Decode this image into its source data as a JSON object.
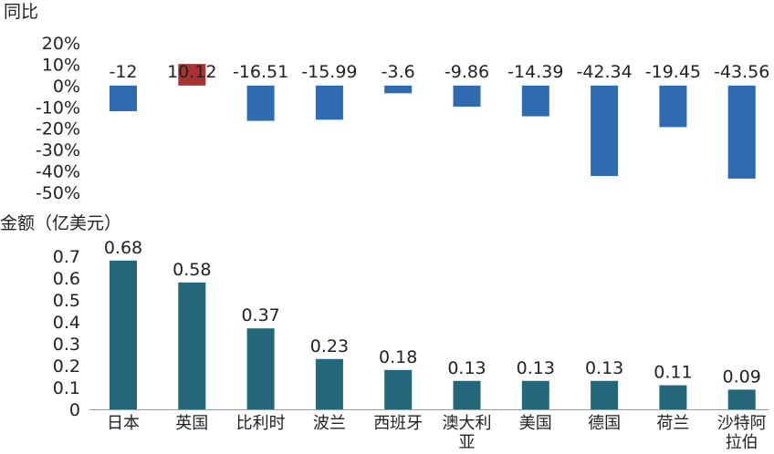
{
  "colors": {
    "positive": "#A83232",
    "negative": "#2E6BB0",
    "amount": "#25677A",
    "axis": "#999999"
  },
  "chart_data": [
    {
      "type": "bar",
      "ylabel": "同比",
      "ylim": [
        -50,
        20
      ],
      "yticks": [
        20,
        10,
        0,
        -10,
        -20,
        -30,
        -40,
        -50
      ],
      "ytick_labels": [
        "20%",
        "10%",
        "0%",
        "-10%",
        "-20%",
        "-30%",
        "-40%",
        "-50%"
      ],
      "categories": [
        "日本",
        "英国",
        "比利时",
        "波兰",
        "西班牙",
        "澳大利亚",
        "美国",
        "德国",
        "荷兰",
        "沙特阿拉伯"
      ],
      "values": [
        -12,
        10.12,
        -16.51,
        -15.99,
        -3.6,
        -9.86,
        -14.39,
        -42.34,
        -19.45,
        -43.56
      ],
      "data_labels": [
        "-12",
        "10.12",
        "-16.51",
        "-15.99",
        "-3.6",
        "-9.86",
        "-14.39",
        "-42.34",
        "-19.45",
        "-43.56"
      ],
      "grid": false
    },
    {
      "type": "bar",
      "ylabel": "金额（亿美元）",
      "ylim": [
        0,
        0.7
      ],
      "yticks": [
        0.7,
        0.6,
        0.5,
        0.4,
        0.3,
        0.2,
        0.1,
        0
      ],
      "ytick_labels": [
        "0.7",
        "0.6",
        "0.5",
        "0.4",
        "0.3",
        "0.2",
        "0.1",
        "0"
      ],
      "categories": [
        "日本",
        "英国",
        "比利时",
        "波兰",
        "西班牙",
        "澳大利亚",
        "美国",
        "德国",
        "荷兰",
        "沙特阿拉伯"
      ],
      "category_lines": [
        [
          "日本"
        ],
        [
          "英国"
        ],
        [
          "比利时"
        ],
        [
          "波兰"
        ],
        [
          "西班牙"
        ],
        [
          "澳大利",
          "亚"
        ],
        [
          "美国"
        ],
        [
          "德国"
        ],
        [
          "荷兰"
        ],
        [
          "沙特阿",
          "拉伯"
        ]
      ],
      "values": [
        0.68,
        0.58,
        0.37,
        0.23,
        0.18,
        0.13,
        0.13,
        0.13,
        0.11,
        0.09
      ],
      "data_labels": [
        "0.68",
        "0.58",
        "0.37",
        "0.23",
        "0.18",
        "0.13",
        "0.13",
        "0.13",
        "0.11",
        "0.09"
      ],
      "grid": false
    }
  ]
}
